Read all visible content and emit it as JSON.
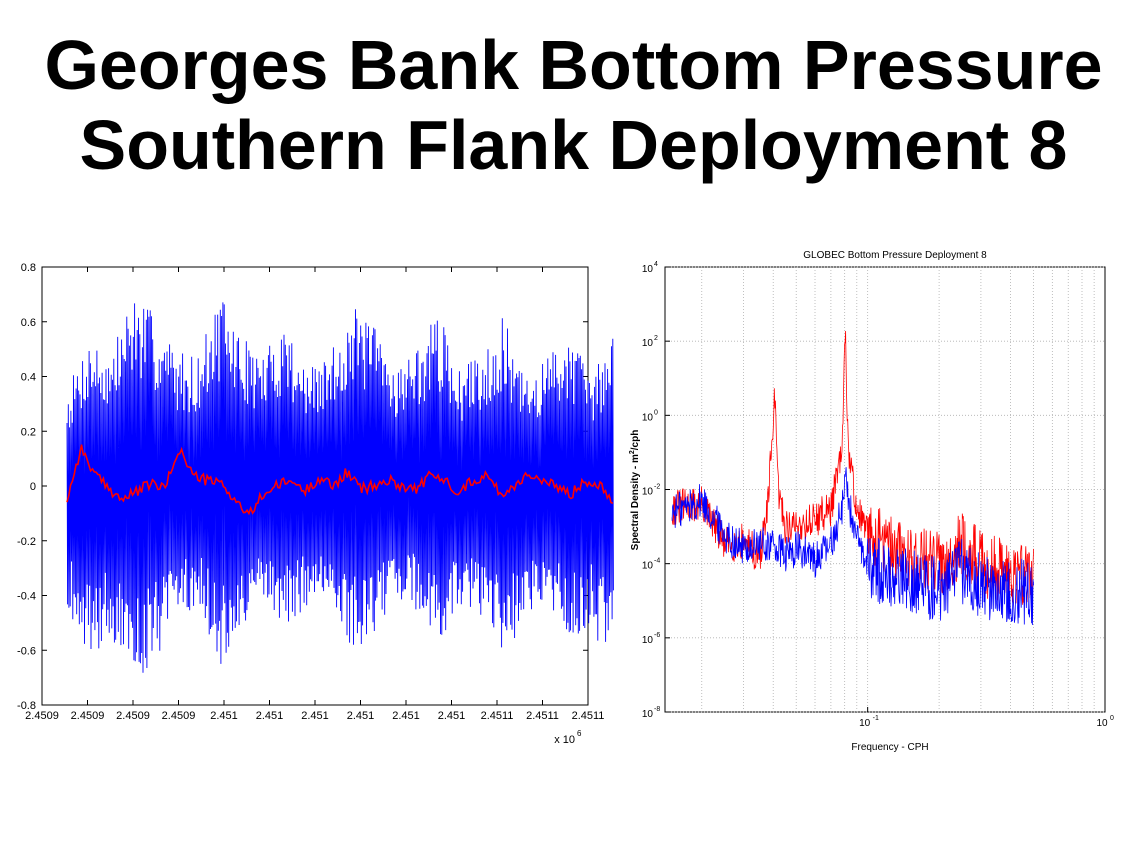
{
  "slide": {
    "title_line1": "Georges Bank Bottom Pressure",
    "title_line2": "Southern Flank Deployment 8"
  },
  "chart_data": [
    {
      "type": "line",
      "title": "",
      "xlabel": "",
      "ylabel": "",
      "x_multiplier_label": "x 10",
      "x_multiplier_exp": "6",
      "xlim": [
        2.4509,
        2.4511
      ],
      "ylim": [
        -0.8,
        0.8
      ],
      "xtick_labels": [
        "2.4509",
        "2.4509",
        "2.4509",
        "2.4509",
        "2.451",
        "2.451",
        "2.451",
        "2.451",
        "2.451",
        "2.451",
        "2.4511",
        "2.4511",
        "2.4511"
      ],
      "ytick_labels": [
        "0.8",
        "0.6",
        "0.4",
        "0.2",
        "0",
        "-0.2",
        "-0.4",
        "-0.6",
        "-0.8"
      ],
      "yticks": [
        0.8,
        0.6,
        0.4,
        0.2,
        0,
        -0.2,
        -0.4,
        -0.6,
        -0.8
      ],
      "grid": false,
      "series": [
        {
          "color": "#0000ff",
          "description_x": "envelope of oscillating series (approx. upper/lower extremes)",
          "x_start": 2.45090915,
          "x_end": 2.45110908,
          "envelope_upper": [
            0.35,
            0.55,
            0.48,
            0.72,
            0.63,
            0.5,
            0.48,
            0.7,
            0.55,
            0.48,
            0.62,
            0.42,
            0.48,
            0.66,
            0.6,
            0.45,
            0.5,
            0.64,
            0.42,
            0.5,
            0.62,
            0.38,
            0.48,
            0.58,
            0.4,
            0.56
          ],
          "envelope_lower": [
            -0.45,
            -0.62,
            -0.56,
            -0.72,
            -0.64,
            -0.48,
            -0.44,
            -0.68,
            -0.55,
            -0.42,
            -0.52,
            -0.44,
            -0.47,
            -0.6,
            -0.55,
            -0.4,
            -0.46,
            -0.6,
            -0.44,
            -0.48,
            -0.62,
            -0.5,
            -0.44,
            -0.57,
            -0.52,
            -0.68
          ]
        },
        {
          "color": "#ff0000",
          "y": [
            -0.05,
            0.14,
            0.04,
            -0.01,
            -0.05,
            -0.02,
            0.01,
            -0.01,
            0.14,
            0.04,
            0.02,
            0.01,
            -0.05,
            -0.11,
            -0.03,
            0.0,
            0.02,
            -0.02,
            0.03,
            0.0,
            0.05,
            -0.01,
            0.0,
            0.02,
            0.0,
            -0.01,
            0.04,
            0.02,
            -0.02,
            0.02,
            0.04,
            -0.03,
            0.0,
            0.05,
            0.01,
            0.0,
            -0.03,
            0.02,
            0.01,
            -0.05
          ]
        }
      ]
    },
    {
      "type": "line",
      "title": "GLOBEC Bottom Pressure Deployment 8",
      "xlabel": "Frequency - CPH",
      "ylabel": "Spectral Density - m²/cph",
      "ylabel_parts": [
        "Spectral Density - m",
        "2",
        "/cph"
      ],
      "x_scale": "log",
      "y_scale": "log",
      "xlim": [
        0.014,
        1.0
      ],
      "ylim": [
        1e-08,
        10000.0
      ],
      "xtick_labels": [
        {
          "base": "10",
          "exp": "-1",
          "value": 0.1
        },
        {
          "base": "10",
          "exp": "0",
          "value": 1.0
        }
      ],
      "ytick_labels": [
        {
          "base": "10",
          "exp": "4",
          "value": 4
        },
        {
          "base": "10",
          "exp": "2",
          "value": 2
        },
        {
          "base": "10",
          "exp": "0",
          "value": 0
        },
        {
          "base": "10",
          "exp": "-2",
          "value": -2
        },
        {
          "base": "10",
          "exp": "-4",
          "value": -4
        },
        {
          "base": "10",
          "exp": "-6",
          "value": -6
        },
        {
          "base": "10",
          "exp": "-8",
          "value": -8
        }
      ],
      "grid": true,
      "series": [
        {
          "color": "#ff0000",
          "freq": [
            0.015,
            0.02,
            0.025,
            0.03,
            0.035,
            0.038,
            0.0405,
            0.042,
            0.045,
            0.05,
            0.06,
            0.07,
            0.078,
            0.0805,
            0.083,
            0.09,
            0.1,
            0.12,
            0.15,
            0.2,
            0.25,
            0.3,
            0.4,
            0.5
          ],
          "log10_density": [
            -2.5,
            -2.4,
            -3.5,
            -3.4,
            -3.8,
            -2.5,
            0.5,
            -2.0,
            -3.0,
            -3.0,
            -2.8,
            -2.5,
            -1.0,
            2.2,
            -1.0,
            -2.5,
            -3.2,
            -3.5,
            -3.8,
            -4.0,
            -3.5,
            -4.0,
            -4.2,
            -4.3
          ]
        },
        {
          "color": "#0000ff",
          "freq": [
            0.015,
            0.02,
            0.025,
            0.03,
            0.035,
            0.04,
            0.045,
            0.05,
            0.06,
            0.07,
            0.078,
            0.0805,
            0.083,
            0.09,
            0.1,
            0.12,
            0.15,
            0.2,
            0.25,
            0.3,
            0.4,
            0.5
          ],
          "log10_density": [
            -2.6,
            -2.3,
            -3.2,
            -3.6,
            -3.5,
            -3.5,
            -3.8,
            -3.6,
            -3.9,
            -3.5,
            -2.5,
            -1.5,
            -2.3,
            -3.4,
            -4.0,
            -4.3,
            -4.4,
            -4.7,
            -4.2,
            -4.6,
            -4.7,
            -4.8
          ]
        }
      ]
    }
  ]
}
